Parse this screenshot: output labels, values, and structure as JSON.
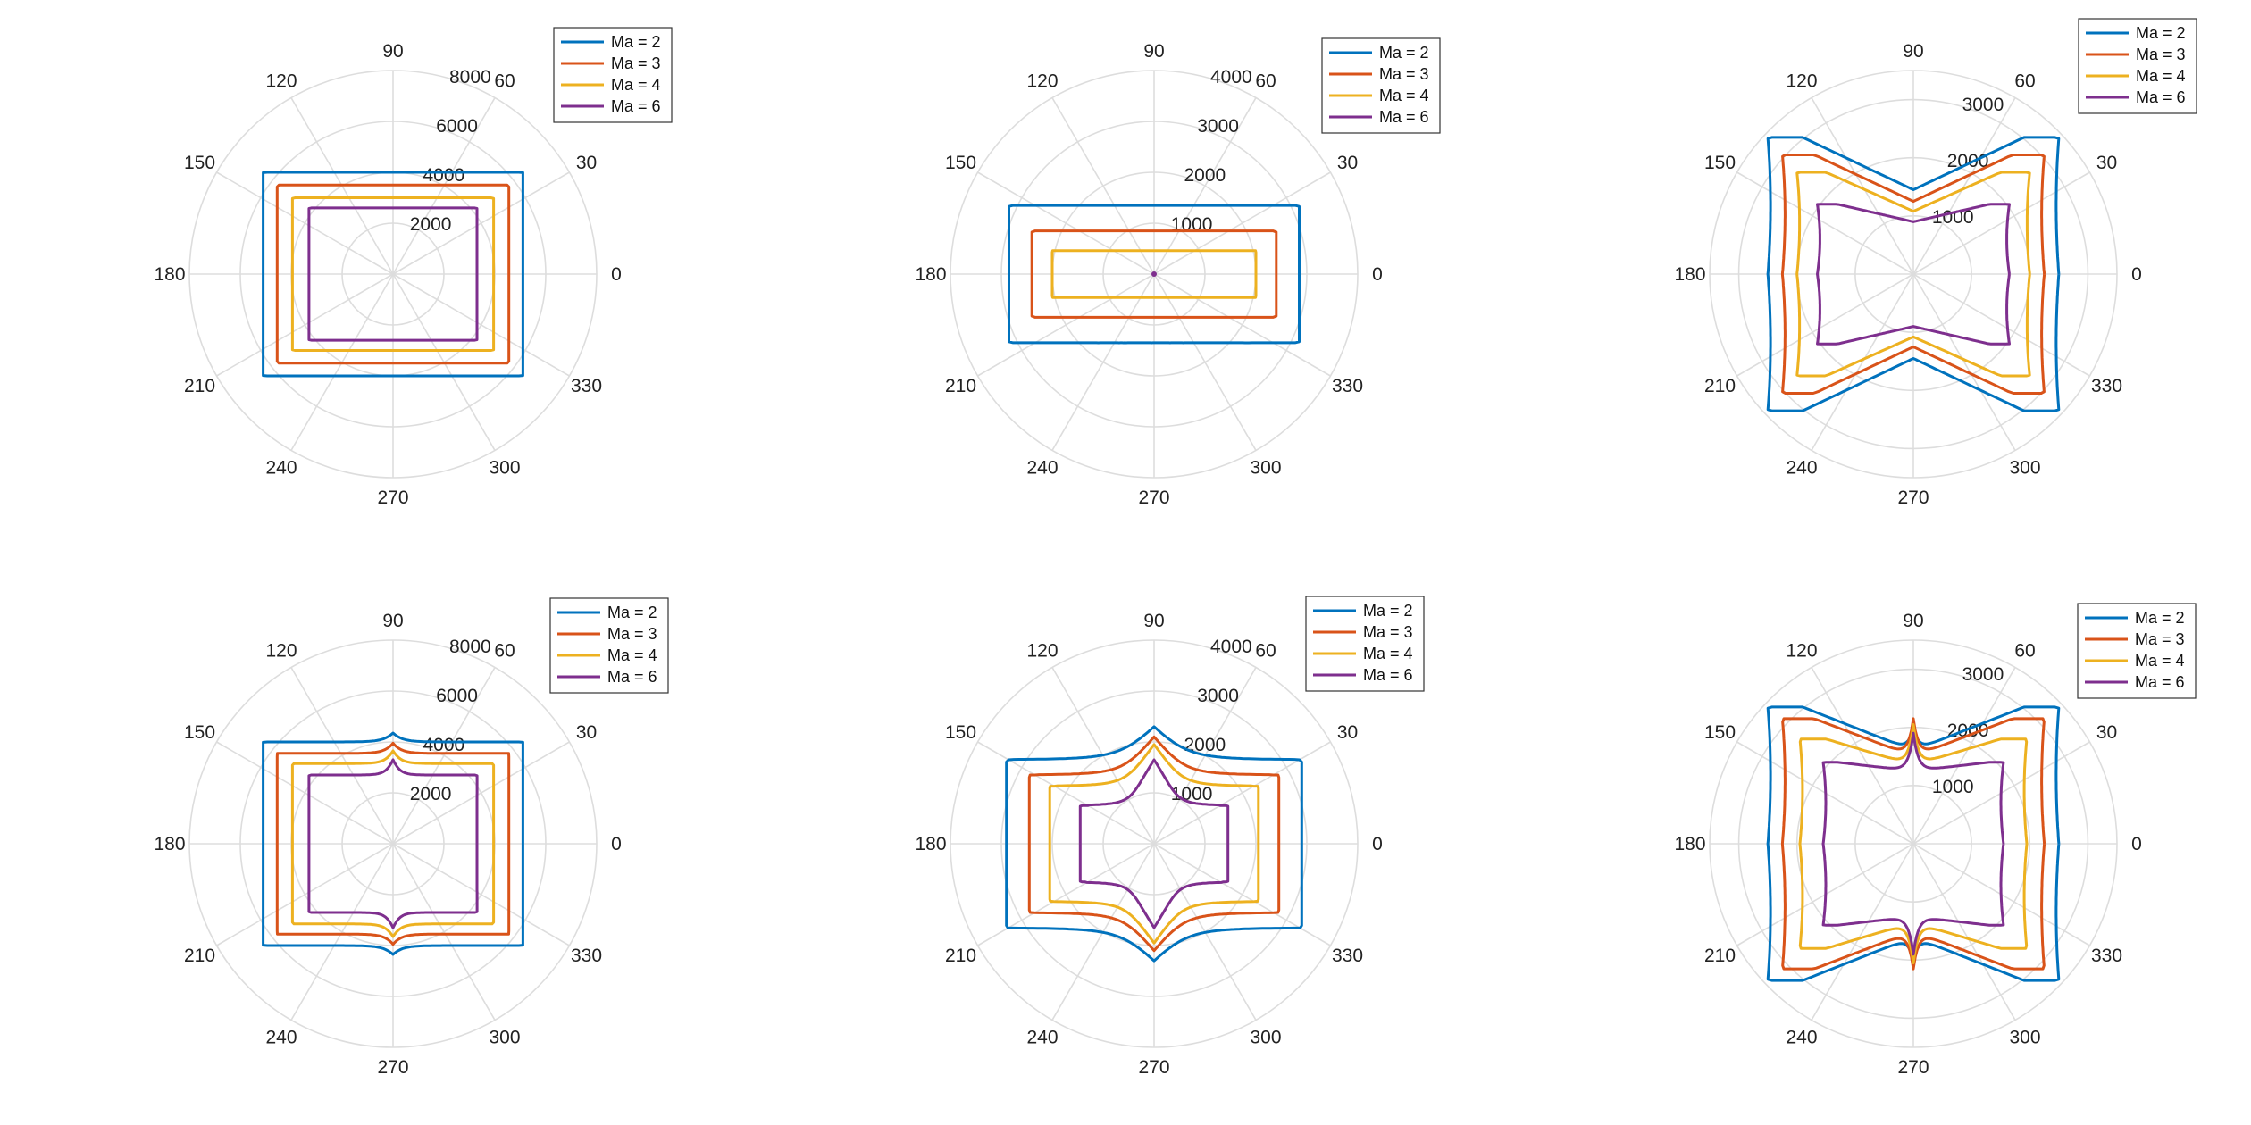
{
  "colors": {
    "grid": "#dddddd",
    "text": "#222222"
  },
  "chart_data": [
    {
      "type": "polar-line",
      "angle_ticks": [
        "0",
        "30",
        "60",
        "90",
        "120",
        "150",
        "180",
        "210",
        "240",
        "270",
        "300",
        "330"
      ],
      "radial_ticks": [
        2000,
        4000,
        6000,
        8000
      ],
      "radial_tick_labels": [
        "2000",
        "4000",
        "6000",
        "8000"
      ],
      "rlim": [
        0,
        8000
      ],
      "legend_position": "top-right",
      "series": [
        {
          "name": "Ma = 2",
          "color": "#0072BD",
          "shape": "rect",
          "params": {
            "xe": 5100,
            "ye": 4000
          }
        },
        {
          "name": "Ma = 3",
          "color": "#D95319",
          "shape": "rect",
          "params": {
            "xe": 4550,
            "ye": 3500
          }
        },
        {
          "name": "Ma = 4",
          "color": "#EDB120",
          "shape": "rect",
          "params": {
            "xe": 3950,
            "ye": 3000
          }
        },
        {
          "name": "Ma = 6",
          "color": "#7E2F8E",
          "shape": "rect",
          "params": {
            "xe": 3300,
            "ye": 2600
          }
        }
      ]
    },
    {
      "type": "polar-line",
      "angle_ticks": [
        "0",
        "30",
        "60",
        "90",
        "120",
        "150",
        "180",
        "210",
        "240",
        "270",
        "300",
        "330"
      ],
      "radial_ticks": [
        1000,
        2000,
        3000,
        4000
      ],
      "radial_tick_labels": [
        "1000",
        "2000",
        "3000",
        "4000"
      ],
      "rlim": [
        0,
        4000
      ],
      "legend_position": "top-right",
      "series": [
        {
          "name": "Ma = 2",
          "color": "#0072BD",
          "shape": "rect",
          "params": {
            "xe": 2850,
            "ye": 1350
          }
        },
        {
          "name": "Ma = 3",
          "color": "#D95319",
          "shape": "rect",
          "params": {
            "xe": 2400,
            "ye": 850
          }
        },
        {
          "name": "Ma = 4",
          "color": "#EDB120",
          "shape": "rect",
          "params": {
            "xe": 2000,
            "ye": 460
          }
        },
        {
          "name": "Ma = 6",
          "color": "#7E2F8E",
          "shape": "dot",
          "params": {
            "r": 25
          }
        }
      ]
    },
    {
      "type": "polar-line",
      "angle_ticks": [
        "0",
        "30",
        "60",
        "90",
        "120",
        "150",
        "180",
        "210",
        "240",
        "270",
        "300",
        "330"
      ],
      "radial_ticks": [
        1000,
        2000,
        3000
      ],
      "radial_tick_labels": [
        "1000",
        "2000",
        "3000"
      ],
      "rlim": [
        0,
        3500
      ],
      "legend_position": "top-right",
      "series": [
        {
          "name": "Ma = 2",
          "color": "#0072BD",
          "shape": "bowtie",
          "params": {
            "xe": 2500,
            "yc": 1450,
            "xk": 1900,
            "yk": 2350
          }
        },
        {
          "name": "Ma = 3",
          "color": "#D95319",
          "shape": "bowtie",
          "params": {
            "xe": 2250,
            "yc": 1250,
            "xk": 1700,
            "yk": 2050
          }
        },
        {
          "name": "Ma = 4",
          "color": "#EDB120",
          "shape": "bowtie",
          "params": {
            "xe": 2000,
            "yc": 1080,
            "xk": 1500,
            "yk": 1750
          }
        },
        {
          "name": "Ma = 6",
          "color": "#7E2F8E",
          "shape": "bowtie",
          "params": {
            "xe": 1650,
            "yc": 900,
            "xk": 1300,
            "yk": 1200
          }
        }
      ]
    },
    {
      "type": "polar-line",
      "angle_ticks": [
        "0",
        "30",
        "60",
        "90",
        "120",
        "150",
        "180",
        "210",
        "240",
        "270",
        "300",
        "330"
      ],
      "radial_ticks": [
        2000,
        4000,
        6000,
        8000
      ],
      "radial_tick_labels": [
        "2000",
        "4000",
        "6000",
        "8000"
      ],
      "rlim": [
        0,
        8000
      ],
      "legend_position": "top-right",
      "series": [
        {
          "name": "Ma = 2",
          "color": "#0072BD",
          "shape": "rectcusp",
          "params": {
            "xe": 5100,
            "ye": 4000,
            "peak": 4350,
            "sig": 5
          }
        },
        {
          "name": "Ma = 3",
          "color": "#D95319",
          "shape": "rectcusp",
          "params": {
            "xe": 4550,
            "ye": 3550,
            "peak": 3950,
            "sig": 5
          }
        },
        {
          "name": "Ma = 4",
          "color": "#EDB120",
          "shape": "rectcusp",
          "params": {
            "xe": 3950,
            "ye": 3150,
            "peak": 3650,
            "sig": 5
          }
        },
        {
          "name": "Ma = 6",
          "color": "#7E2F8E",
          "shape": "rectcusp",
          "params": {
            "xe": 3300,
            "ye": 2700,
            "peak": 3300,
            "sig": 5
          }
        }
      ]
    },
    {
      "type": "polar-line",
      "angle_ticks": [
        "0",
        "30",
        "60",
        "90",
        "120",
        "150",
        "180",
        "210",
        "240",
        "270",
        "300",
        "330"
      ],
      "radial_ticks": [
        1000,
        2000,
        3000,
        4000
      ],
      "radial_tick_labels": [
        "1000",
        "2000",
        "3000",
        "4000"
      ],
      "rlim": [
        0,
        4000
      ],
      "legend_position": "top-right",
      "series": [
        {
          "name": "Ma = 2",
          "color": "#0072BD",
          "shape": "rectcusp",
          "params": {
            "xe": 2900,
            "ye": 1650,
            "peak": 2300,
            "sig": 18
          }
        },
        {
          "name": "Ma = 3",
          "color": "#D95319",
          "shape": "rectcusp",
          "params": {
            "xe": 2450,
            "ye": 1350,
            "peak": 2100,
            "sig": 18
          }
        },
        {
          "name": "Ma = 4",
          "color": "#EDB120",
          "shape": "rectcusp",
          "params": {
            "xe": 2050,
            "ye": 1130,
            "peak": 1950,
            "sig": 18
          }
        },
        {
          "name": "Ma = 6",
          "color": "#7E2F8E",
          "shape": "rectcusp",
          "params": {
            "xe": 1450,
            "ye": 750,
            "peak": 1650,
            "sig": 20
          }
        }
      ]
    },
    {
      "type": "polar-line",
      "angle_ticks": [
        "0",
        "30",
        "60",
        "90",
        "120",
        "150",
        "180",
        "210",
        "240",
        "270",
        "300",
        "330"
      ],
      "radial_ticks": [
        1000,
        2000,
        3000
      ],
      "radial_tick_labels": [
        "1000",
        "2000",
        "3000"
      ],
      "rlim": [
        0,
        3500
      ],
      "legend_position": "top-right",
      "series": [
        {
          "name": "Ma = 2",
          "color": "#0072BD",
          "shape": "bowtie",
          "params": {
            "xe": 2500,
            "yc": 1600,
            "xk": 1900,
            "yk": 2350,
            "cusp": 2000,
            "cw": 3
          }
        },
        {
          "name": "Ma = 3",
          "color": "#D95319",
          "shape": "bowtie",
          "params": {
            "xe": 2250,
            "yc": 1500,
            "xk": 1700,
            "yk": 2150,
            "cusp": 2150,
            "cw": 3
          }
        },
        {
          "name": "Ma = 4",
          "color": "#EDB120",
          "shape": "bowtie",
          "params": {
            "xe": 1950,
            "yc": 1350,
            "xk": 1500,
            "yk": 1800,
            "cusp": 2050,
            "cw": 3
          }
        },
        {
          "name": "Ma = 6",
          "color": "#7E2F8E",
          "shape": "bowtie",
          "params": {
            "xe": 1550,
            "yc": 1250,
            "xk": 1300,
            "yk": 1400,
            "cusp": 1900,
            "cw": 3
          }
        }
      ]
    }
  ]
}
